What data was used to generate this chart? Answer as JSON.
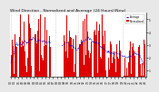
{
  "title": "Wind Direction - Normalized and Average (24 Hours)(New)",
  "background_color": "#e8e8e8",
  "plot_bg_color": "#ffffff",
  "bar_color": "#dd0000",
  "line_color": "#0000cc",
  "ylim": [
    0.5,
    5.5
  ],
  "yticks": [
    1,
    2,
    3,
    4,
    5
  ],
  "n_points": 288,
  "seed": 7,
  "legend_labels": [
    "Average",
    "Normalized"
  ],
  "legend_colors": [
    "#0000cc",
    "#dd0000"
  ],
  "grid_color": "#aaaaaa",
  "title_fontsize": 3.2,
  "tick_fontsize": 2.2,
  "n_grid_lines": 7,
  "n_xticks": 36
}
